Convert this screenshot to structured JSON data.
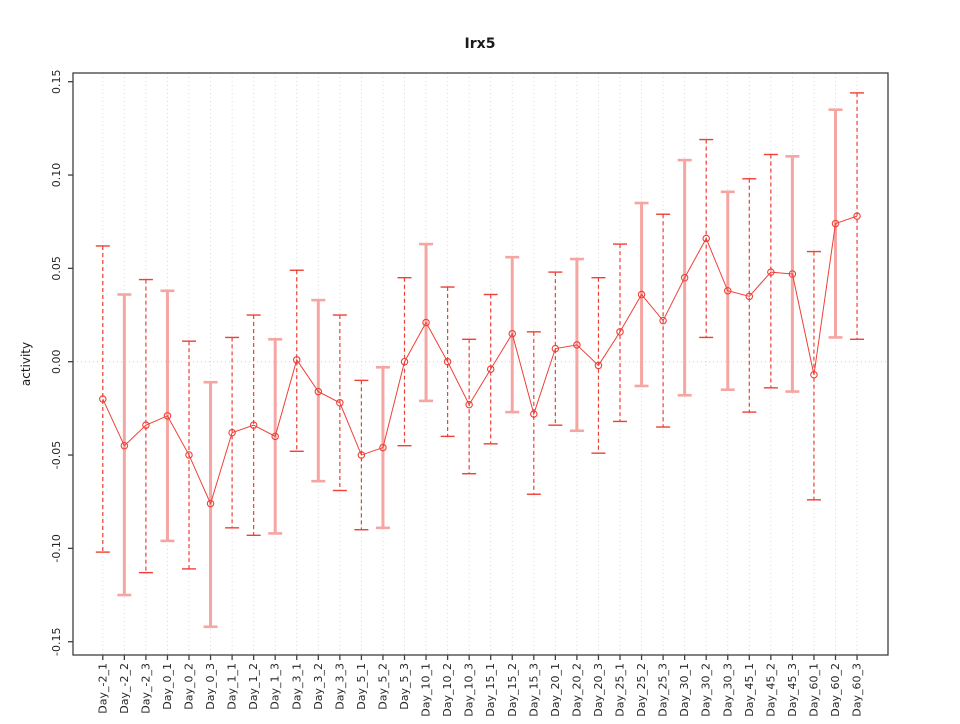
{
  "chart_data": {
    "type": "errorbar-line",
    "title": "Irx5",
    "ylabel": "activity",
    "xlabel": "",
    "ylim": [
      -0.15,
      0.15
    ],
    "ytick_labels": [
      "0.15",
      "0.10",
      "0.05",
      "0.00",
      "-0.05",
      "-0.10",
      "-0.15"
    ],
    "ytick_values": [
      0.15,
      0.1,
      0.05,
      0.0,
      -0.05,
      -0.1,
      -0.15
    ],
    "grid": "vertical dotted gridline per category, dotted horizontal line at 0",
    "legend": "none",
    "colors": {
      "point_red": "#ee4037",
      "bar_pink": "#f5a5a2",
      "gridline_gray": "#d9d9d9",
      "zero_line_gray": "#cfcfcf",
      "axis_dark": "#3f3f3f",
      "text_dark": "#262626"
    },
    "categories": [
      "Day_-2_1",
      "Day_-2_2",
      "Day_-2_3",
      "Day_0_1",
      "Day_0_2",
      "Day_0_3",
      "Day_1_1",
      "Day_1_2",
      "Day_1_3",
      "Day_3_1",
      "Day_3_2",
      "Day_3_3",
      "Day_5_1",
      "Day_5_2",
      "Day_5_3",
      "Day_10_1",
      "Day_10_2",
      "Day_10_3",
      "Day_15_1",
      "Day_15_2",
      "Day_15_3",
      "Day_20_1",
      "Day_20_2",
      "Day_20_3",
      "Day_25_1",
      "Day_25_2",
      "Day_25_3",
      "Day_30_1",
      "Day_30_2",
      "Day_30_3",
      "Day_45_1",
      "Day_45_2",
      "Day_45_3",
      "Day_60_1",
      "Day_60_2",
      "Day_60_3"
    ],
    "points": [
      {
        "label": "Day_-2_1",
        "value": -0.02,
        "upper": 0.062,
        "lower": -0.102,
        "style": "dashed"
      },
      {
        "label": "Day_-2_2",
        "value": -0.045,
        "upper": 0.036,
        "lower": -0.125,
        "style": "solid"
      },
      {
        "label": "Day_-2_3",
        "value": -0.034,
        "upper": 0.044,
        "lower": -0.113,
        "style": "dashed"
      },
      {
        "label": "Day_0_1",
        "value": -0.029,
        "upper": 0.038,
        "lower": -0.096,
        "style": "solid"
      },
      {
        "label": "Day_0_2",
        "value": -0.05,
        "upper": 0.011,
        "lower": -0.111,
        "style": "dashed"
      },
      {
        "label": "Day_0_3",
        "value": -0.076,
        "upper": -0.011,
        "lower": -0.142,
        "style": "solid"
      },
      {
        "label": "Day_1_1",
        "value": -0.038,
        "upper": 0.013,
        "lower": -0.089,
        "style": "dashed"
      },
      {
        "label": "Day_1_2",
        "value": -0.034,
        "upper": 0.025,
        "lower": -0.093,
        "style": "dashed"
      },
      {
        "label": "Day_1_3",
        "value": -0.04,
        "upper": 0.012,
        "lower": -0.092,
        "style": "solid"
      },
      {
        "label": "Day_3_1",
        "value": 0.001,
        "upper": 0.049,
        "lower": -0.048,
        "style": "dashed"
      },
      {
        "label": "Day_3_2",
        "value": -0.016,
        "upper": 0.033,
        "lower": -0.064,
        "style": "solid"
      },
      {
        "label": "Day_3_3",
        "value": -0.022,
        "upper": 0.025,
        "lower": -0.069,
        "style": "dashed"
      },
      {
        "label": "Day_5_1",
        "value": -0.05,
        "upper": -0.01,
        "lower": -0.09,
        "style": "dashed"
      },
      {
        "label": "Day_5_2",
        "value": -0.046,
        "upper": -0.003,
        "lower": -0.089,
        "style": "solid"
      },
      {
        "label": "Day_5_3",
        "value": 0.0,
        "upper": 0.045,
        "lower": -0.045,
        "style": "dashed"
      },
      {
        "label": "Day_10_1",
        "value": 0.021,
        "upper": 0.063,
        "lower": -0.021,
        "style": "solid"
      },
      {
        "label": "Day_10_2",
        "value": 0.0,
        "upper": 0.04,
        "lower": -0.04,
        "style": "dashed"
      },
      {
        "label": "Day_10_3",
        "value": -0.023,
        "upper": 0.012,
        "lower": -0.06,
        "style": "dashed"
      },
      {
        "label": "Day_15_1",
        "value": -0.004,
        "upper": 0.036,
        "lower": -0.044,
        "style": "dashed"
      },
      {
        "label": "Day_15_2",
        "value": 0.015,
        "upper": 0.056,
        "lower": -0.027,
        "style": "solid"
      },
      {
        "label": "Day_15_3",
        "value": -0.028,
        "upper": 0.016,
        "lower": -0.071,
        "style": "dashed"
      },
      {
        "label": "Day_20_1",
        "value": 0.007,
        "upper": 0.048,
        "lower": -0.034,
        "style": "dashed"
      },
      {
        "label": "Day_20_2",
        "value": 0.009,
        "upper": 0.055,
        "lower": -0.037,
        "style": "solid"
      },
      {
        "label": "Day_20_3",
        "value": -0.002,
        "upper": 0.045,
        "lower": -0.049,
        "style": "dashed"
      },
      {
        "label": "Day_25_1",
        "value": 0.016,
        "upper": 0.063,
        "lower": -0.032,
        "style": "dashed"
      },
      {
        "label": "Day_25_2",
        "value": 0.036,
        "upper": 0.085,
        "lower": -0.013,
        "style": "solid"
      },
      {
        "label": "Day_25_3",
        "value": 0.022,
        "upper": 0.079,
        "lower": -0.035,
        "style": "dashed"
      },
      {
        "label": "Day_30_1",
        "value": 0.045,
        "upper": 0.108,
        "lower": -0.018,
        "style": "solid"
      },
      {
        "label": "Day_30_2",
        "value": 0.066,
        "upper": 0.119,
        "lower": 0.013,
        "style": "dashed"
      },
      {
        "label": "Day_30_3",
        "value": 0.038,
        "upper": 0.091,
        "lower": -0.015,
        "style": "solid"
      },
      {
        "label": "Day_45_1",
        "value": 0.035,
        "upper": 0.098,
        "lower": -0.027,
        "style": "dashed"
      },
      {
        "label": "Day_45_2",
        "value": 0.048,
        "upper": 0.111,
        "lower": -0.014,
        "style": "dashed"
      },
      {
        "label": "Day_45_3",
        "value": 0.047,
        "upper": 0.11,
        "lower": -0.016,
        "style": "solid"
      },
      {
        "label": "Day_60_1",
        "value": -0.007,
        "upper": 0.059,
        "lower": -0.074,
        "style": "dashed"
      },
      {
        "label": "Day_60_2",
        "value": 0.074,
        "upper": 0.135,
        "lower": 0.013,
        "style": "solid"
      },
      {
        "label": "Day_60_3",
        "value": 0.078,
        "upper": 0.144,
        "lower": 0.012,
        "style": "dashed"
      }
    ]
  }
}
